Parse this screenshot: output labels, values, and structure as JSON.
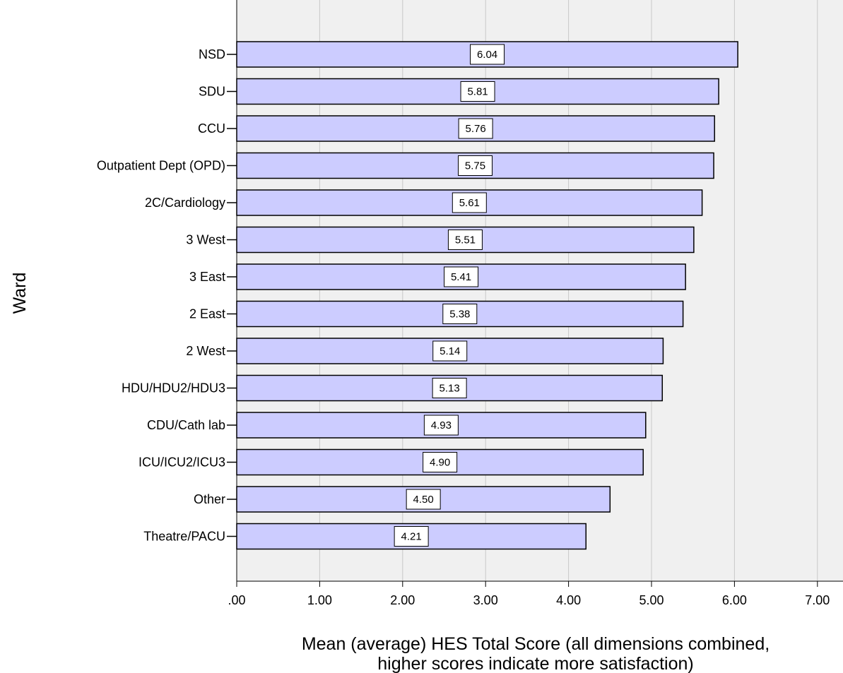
{
  "chart_data": {
    "type": "bar",
    "orientation": "horizontal",
    "categories": [
      "NSD",
      "SDU",
      "CCU",
      "Outpatient Dept (OPD)",
      "2C/Cardiology",
      "3 West",
      "3 East",
      "2 East",
      "2 West",
      "HDU/HDU2/HDU3",
      "CDU/Cath lab",
      "ICU/ICU2/ICU3",
      "Other",
      "Theatre/PACU"
    ],
    "values": [
      6.04,
      5.81,
      5.76,
      5.75,
      5.61,
      5.51,
      5.41,
      5.38,
      5.14,
      5.13,
      4.93,
      4.9,
      4.5,
      4.21
    ],
    "data_labels": [
      "6.04",
      "5.81",
      "5.76",
      "5.75",
      "5.61",
      "5.51",
      "5.41",
      "5.38",
      "5.14",
      "5.13",
      "4.93",
      "4.90",
      "4.50",
      "4.21"
    ],
    "x_ticks": [
      0,
      1,
      2,
      3,
      4,
      5,
      6,
      7
    ],
    "x_tick_labels": [
      ".00",
      "1.00",
      "2.00",
      "3.00",
      "4.00",
      "5.00",
      "6.00",
      "7.00"
    ],
    "xlim": [
      0,
      7.3
    ],
    "xlabel_lines": [
      "Mean (average) HES Total Score (all dimensions combined,",
      "higher scores indicate more satisfaction)"
    ],
    "ylabel": "Ward",
    "grid": true,
    "colors": {
      "bar_fill": "#ccccff",
      "bar_stroke": "#000000",
      "plot_background": "#f0f0f0",
      "grid": "#c8c8c8"
    }
  }
}
